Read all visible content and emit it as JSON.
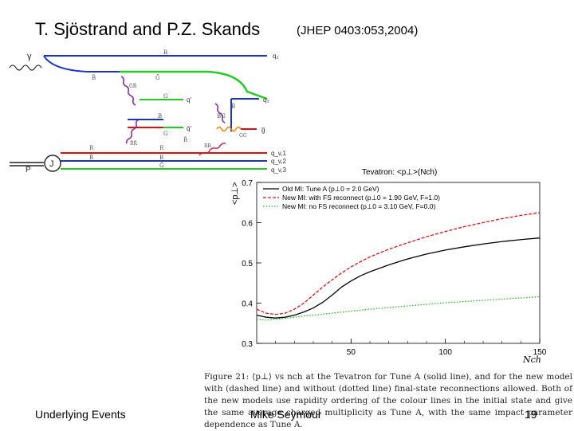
{
  "slide": {
    "title": "T. Sjöstrand and P.Z. Skands",
    "reference": "(JHEP 0403:053,2004)",
    "footer_left": "Underlying Events",
    "footer_center": "Mike Seymour",
    "page_number": "19"
  },
  "diagram": {
    "labels": {
      "gamma": "γ",
      "p": "P",
      "j": "J",
      "b1": "B",
      "bbar1": "B̄",
      "gbar": "Ḡ",
      "g1": "G",
      "g2": "G",
      "b2": "B",
      "gbar_gbar": "ḠB̄",
      "bg": "BG",
      "bbar_r": "B̄R̄",
      "r1": "R",
      "r2": "R",
      "bbar2": "B̄",
      "b3": "B",
      "gbar2": "Ḡ",
      "rbar": "R̄",
      "rb": "RB",
      "gg": "GG",
      "bbar3": "B̄",
      "q2": "q₂",
      "qprime": "q′",
      "qbarprime": "q̄′",
      "q3": "q₃",
      "gbar_out": "g̅",
      "qv1": "q_v,1",
      "qv2": "q_v,2",
      "qv3": "q_v,3"
    },
    "colors": {
      "blue": "#1a33cc",
      "green": "#22cc22",
      "red": "#dd1111",
      "purple": "#8833aa",
      "orange": "#ee8800"
    }
  },
  "chart_data": {
    "type": "line",
    "title": "Tevatron: <p⊥>(Nch)",
    "xlabel": "Nch",
    "ylabel": "<p⊥>",
    "xlim": [
      0,
      150
    ],
    "ylim": [
      0.3,
      0.7
    ],
    "xticks": [
      50,
      100,
      150
    ],
    "yticks": [
      0.3,
      0.4,
      0.5,
      0.6,
      0.7
    ],
    "legend_position": "top",
    "series": [
      {
        "name": "Old MI: Tune A (p⊥0 = 2.0 GeV)",
        "color": "#000000",
        "dash": "solid",
        "x": [
          0,
          5,
          10,
          15,
          20,
          25,
          30,
          35,
          40,
          45,
          50,
          55,
          60,
          70,
          80,
          90,
          100,
          110,
          120,
          130,
          140,
          150
        ],
        "y": [
          0.37,
          0.365,
          0.363,
          0.365,
          0.37,
          0.378,
          0.388,
          0.402,
          0.42,
          0.44,
          0.455,
          0.468,
          0.478,
          0.495,
          0.51,
          0.522,
          0.532,
          0.54,
          0.547,
          0.553,
          0.558,
          0.562
        ]
      },
      {
        "name": "New MI: with FS reconnect (p⊥0 = 1.90 GeV, F=1.0)",
        "color": "#dd1111",
        "dash": "dashed",
        "x": [
          0,
          5,
          10,
          15,
          20,
          25,
          30,
          35,
          40,
          45,
          50,
          55,
          60,
          70,
          80,
          90,
          100,
          110,
          120,
          130,
          140,
          150
        ],
        "y": [
          0.385,
          0.375,
          0.372,
          0.375,
          0.385,
          0.4,
          0.42,
          0.44,
          0.458,
          0.475,
          0.49,
          0.503,
          0.515,
          0.534,
          0.55,
          0.565,
          0.578,
          0.59,
          0.6,
          0.61,
          0.618,
          0.625
        ]
      },
      {
        "name": "New MI: no FS reconnect (p⊥0 = 3.10 GeV, F=0.0)",
        "color": "#22bb22",
        "dash": "dotted",
        "x": [
          0,
          5,
          10,
          15,
          20,
          25,
          30,
          40,
          50,
          60,
          70,
          80,
          90,
          100,
          110,
          120,
          130,
          140,
          150
        ],
        "y": [
          0.36,
          0.358,
          0.36,
          0.362,
          0.365,
          0.368,
          0.37,
          0.375,
          0.38,
          0.385,
          0.389,
          0.393,
          0.397,
          0.401,
          0.404,
          0.407,
          0.41,
          0.413,
          0.416
        ]
      }
    ]
  },
  "caption": {
    "text": "Figure 21: ⟨p⊥⟩ vs nch at the Tevatron for Tune A (solid line), and for the new model with (dashed line) and without (dotted line) final-state reconnections allowed. Both of the new models use rapidity ordering of the colour lines in the initial state and give the same average charged multiplicity as Tune A, with the same impact parameter dependence as Tune A."
  }
}
